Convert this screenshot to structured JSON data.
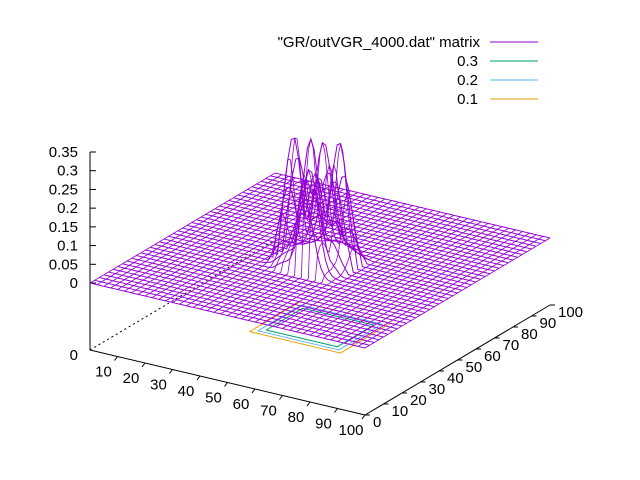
{
  "chart_data": {
    "type": "surface",
    "title": "",
    "xlabel": "",
    "ylabel": "",
    "zlabel": "",
    "x_range": [
      0,
      100
    ],
    "y_range": [
      0,
      100
    ],
    "z_range": [
      0,
      0.35
    ],
    "x_ticks": [
      "10",
      "20",
      "30",
      "40",
      "50",
      "60",
      "70",
      "80",
      "90",
      "100"
    ],
    "y_ticks": [
      "0",
      "10",
      "20",
      "30",
      "40",
      "50",
      "60",
      "70",
      "80",
      "90",
      "100"
    ],
    "z_ticks": [
      "0",
      "0.05",
      "0.1",
      "0.15",
      "0.2",
      "0.25",
      "0.3",
      "0.35"
    ],
    "base_tick": "0",
    "grid": false,
    "legend_position": "top-right",
    "surface": {
      "name": "\"GR/outVGR_4000.dat\" matrix",
      "color": "#9400d3",
      "baseline": 0,
      "peaks": [
        {
          "x": 50,
          "y": 45,
          "z": 0.34
        },
        {
          "x": 42,
          "y": 48,
          "z": 0.33
        },
        {
          "x": 57,
          "y": 50,
          "z": 0.33
        },
        {
          "x": 48,
          "y": 55,
          "z": 0.3
        },
        {
          "x": 53,
          "y": 40,
          "z": 0.28
        }
      ],
      "bump_center": [
        50,
        48
      ],
      "bump_extent": [
        37,
        63
      ]
    },
    "contours": [
      {
        "level": "0.3",
        "color": "#009e73"
      },
      {
        "level": "0.2",
        "color": "#56b4e9"
      },
      {
        "level": "0.1",
        "color": "#e69f00"
      }
    ]
  }
}
